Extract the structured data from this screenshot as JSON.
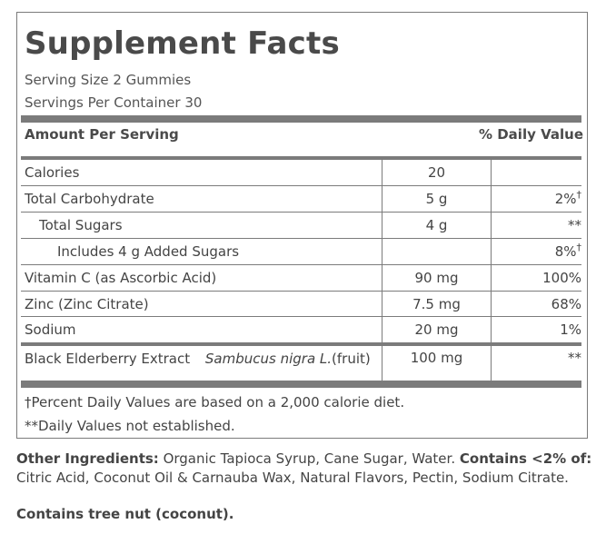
{
  "title": "Supplement Facts",
  "serving_size": "Serving Size 2 Gummies",
  "servings_per_container": "Servings Per Container 30",
  "header": {
    "amount": "Amount Per Serving",
    "daily_value": "% Daily Value"
  },
  "rows": [
    {
      "name": "Calories",
      "amount": "20",
      "dv": ""
    },
    {
      "name": "Total Carbohydrate",
      "amount": "5 g",
      "dv": "2%",
      "dv_mark": "†"
    },
    {
      "name": "Total Sugars",
      "amount": "4 g",
      "dv": "**"
    },
    {
      "name": "Includes 4 g Added Sugars",
      "amount": "",
      "dv": "8%",
      "dv_mark": "†"
    },
    {
      "name": "Vitamin C (as Ascorbic Acid)",
      "amount": "90 mg",
      "dv": "100%"
    },
    {
      "name": "Zinc (Zinc Citrate)",
      "amount": "7.5 mg",
      "dv": "68%"
    },
    {
      "name": "Sodium",
      "amount": "20 mg",
      "dv": "1%"
    },
    {
      "name": "Black Elderberry Extract",
      "name_sub_italic": "Sambucus nigra L.",
      "name_sub_rest": " (fruit)",
      "amount": "100 mg",
      "dv": "**"
    }
  ],
  "footnotes": {
    "dagger": "†Percent Daily Values are based on a 2,000 calorie diet.",
    "double_star": "**Daily Values not established."
  },
  "ingredients": {
    "label": "Other Ingredients:",
    "text": " Organic Tapioca Syrup, Cane Sugar, Water. ",
    "contains_label": "Contains <2% of:",
    "contains_text": " Citric Acid, Coconut Oil & Carnauba Wax, Natural Flavors, Pectin, Sodium Citrate."
  },
  "allergen": "Contains tree nut (coconut).",
  "colors": {
    "rule": "#7b7b7b",
    "title": "#4a4a4a",
    "text": "#444444"
  }
}
